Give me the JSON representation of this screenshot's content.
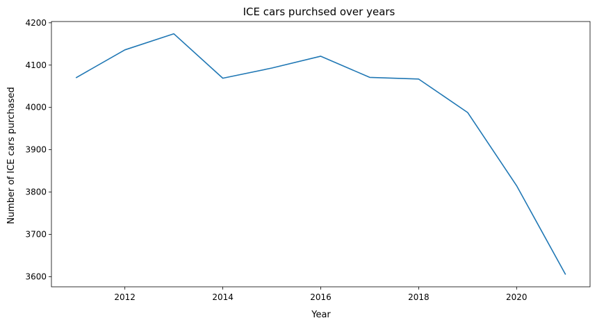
{
  "chart_data": {
    "type": "line",
    "title": "ICE cars purchsed over years",
    "xlabel": "Year",
    "ylabel": "Number of ICE cars purchased",
    "x": [
      2011,
      2012,
      2013,
      2014,
      2015,
      2016,
      2017,
      2018,
      2019,
      2020,
      2021
    ],
    "series": [
      {
        "values": [
          4070,
          4136,
          4174,
          4069,
          4093,
          4121,
          4071,
          4067,
          3988,
          3815,
          3605
        ],
        "color": "#1f77b4"
      }
    ],
    "xticks": [
      2012,
      2014,
      2016,
      2018,
      2020
    ],
    "yticks": [
      3600,
      3700,
      3800,
      3900,
      4000,
      4100,
      4200
    ],
    "xlim": [
      2010.5,
      2021.5
    ],
    "ylim": [
      3576,
      4203
    ],
    "grid": false,
    "legend": "none"
  }
}
